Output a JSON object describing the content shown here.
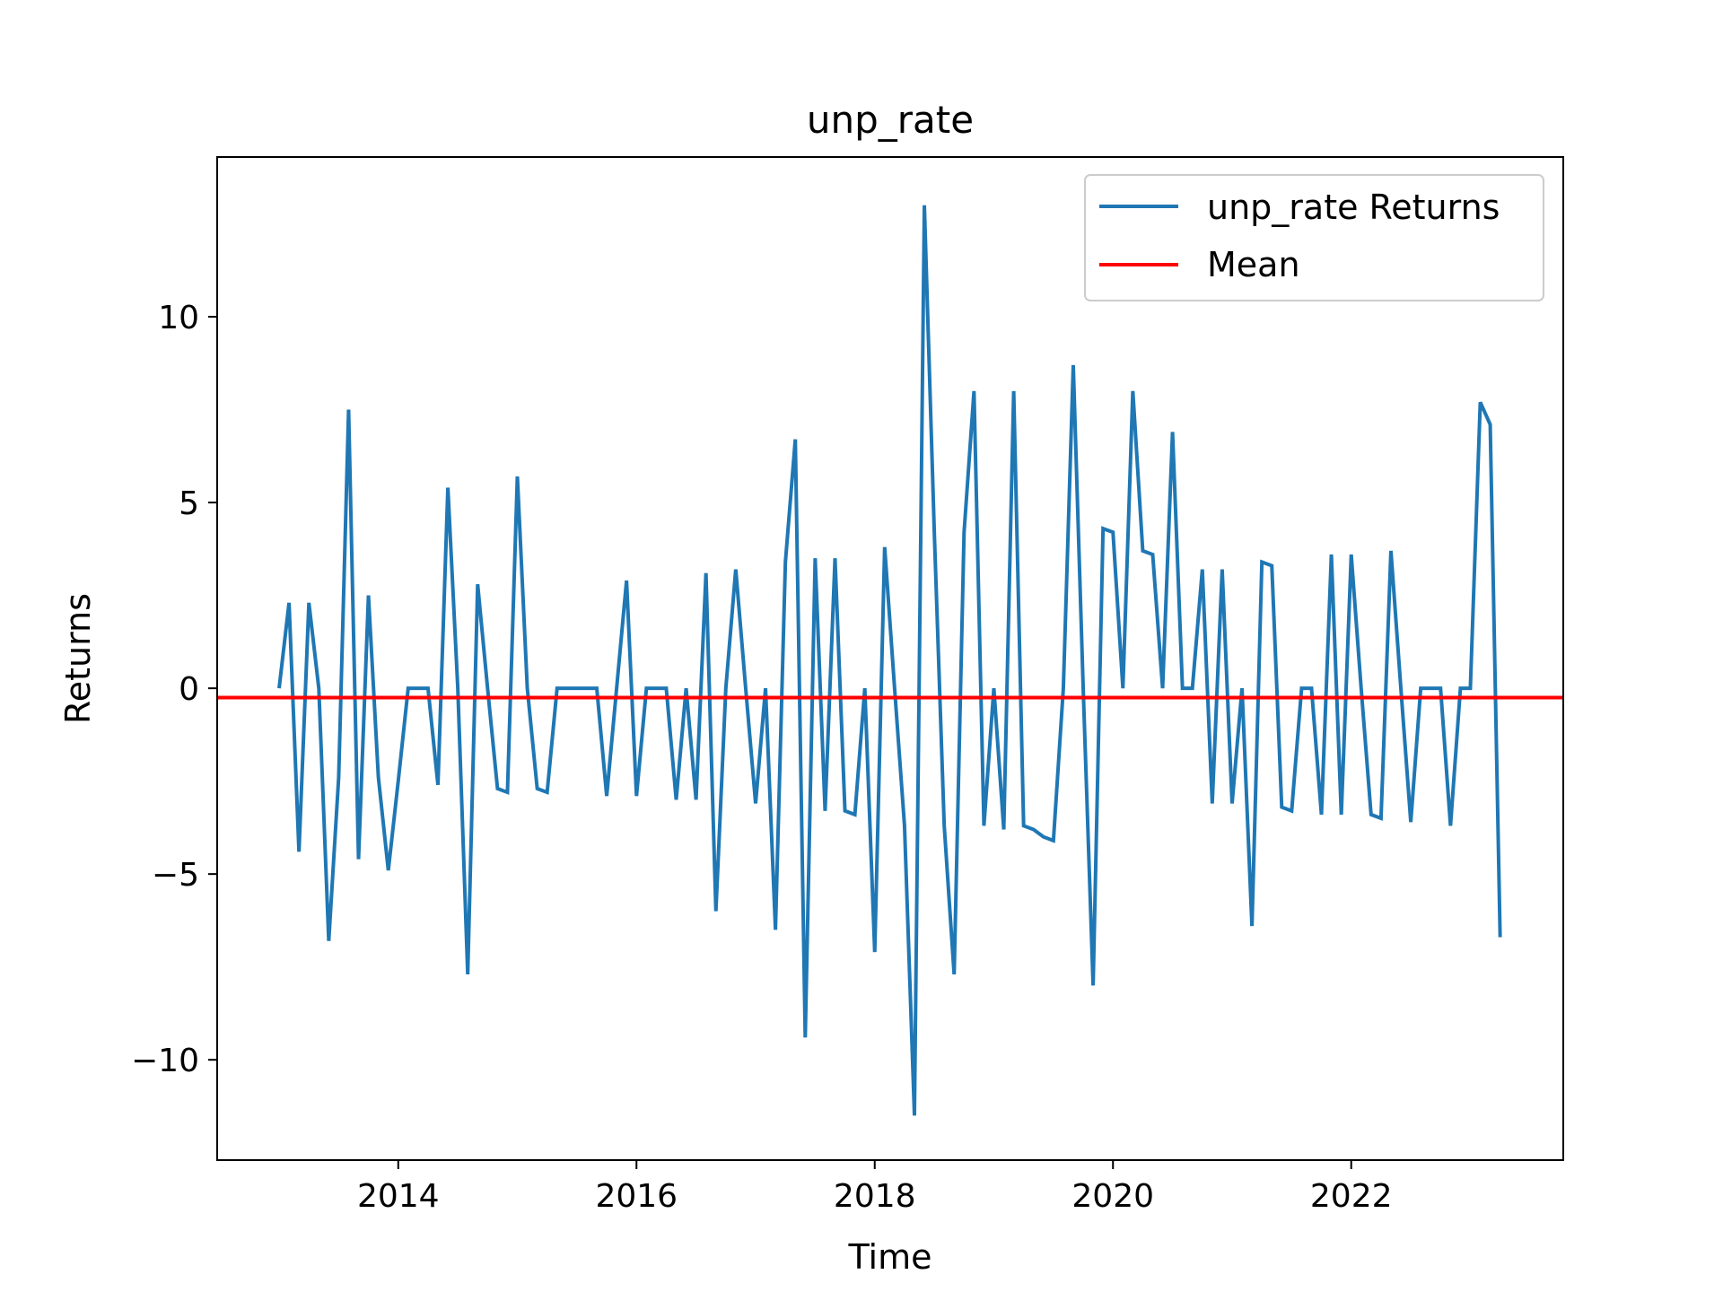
{
  "chart_data": {
    "type": "line",
    "title": "unp_rate",
    "xlabel": "Time",
    "ylabel": "Returns",
    "xlim": [
      2012.48,
      2023.78
    ],
    "ylim": [
      -12.7,
      14.3
    ],
    "grid": false,
    "legend_position": "top-right",
    "xticks": [
      {
        "value": 2014,
        "label": "2014"
      },
      {
        "value": 2016,
        "label": "2016"
      },
      {
        "value": 2018,
        "label": "2018"
      },
      {
        "value": 2020,
        "label": "2020"
      },
      {
        "value": 2022,
        "label": "2022"
      }
    ],
    "yticks": [
      {
        "value": -10,
        "label": "−10"
      },
      {
        "value": -5,
        "label": "−5"
      },
      {
        "value": 0,
        "label": "0"
      },
      {
        "value": 5,
        "label": "5"
      },
      {
        "value": 10,
        "label": "10"
      }
    ],
    "series": [
      {
        "name": "unp_rate Returns",
        "color": "#1f77b4",
        "start": "2013-01",
        "frequency": "monthly",
        "x": [
          "2013-01",
          "2013-02",
          "2013-03",
          "2013-04",
          "2013-05",
          "2013-06",
          "2013-07",
          "2013-08",
          "2013-09",
          "2013-10",
          "2013-11",
          "2013-12",
          "2014-01",
          "2014-02",
          "2014-03",
          "2014-04",
          "2014-05",
          "2014-06",
          "2014-07",
          "2014-08",
          "2014-09",
          "2014-10",
          "2014-11",
          "2014-12",
          "2015-01",
          "2015-02",
          "2015-03",
          "2015-04",
          "2015-05",
          "2015-06",
          "2015-07",
          "2015-08",
          "2015-09",
          "2015-10",
          "2015-11",
          "2015-12",
          "2016-01",
          "2016-02",
          "2016-03",
          "2016-04",
          "2016-05",
          "2016-06",
          "2016-07",
          "2016-08",
          "2016-09",
          "2016-10",
          "2016-11",
          "2016-12",
          "2017-01",
          "2017-02",
          "2017-03",
          "2017-04",
          "2017-05",
          "2017-06",
          "2017-07",
          "2017-08",
          "2017-09",
          "2017-10",
          "2017-11",
          "2017-12",
          "2018-01",
          "2018-02",
          "2018-03",
          "2018-04",
          "2018-05",
          "2018-06",
          "2018-07",
          "2018-08",
          "2018-09",
          "2018-10",
          "2018-11",
          "2018-12",
          "2019-01",
          "2019-02",
          "2019-03",
          "2019-04",
          "2019-05",
          "2019-06",
          "2019-07",
          "2019-08",
          "2019-09",
          "2019-10",
          "2019-11",
          "2019-12",
          "2020-01",
          "2020-02",
          "2020-03",
          "2020-04",
          "2020-05",
          "2020-06",
          "2020-07",
          "2020-08",
          "2020-09",
          "2020-10",
          "2020-11",
          "2020-12",
          "2021-01",
          "2021-02",
          "2021-03",
          "2021-04",
          "2021-05",
          "2021-06",
          "2021-07",
          "2021-08",
          "2021-09",
          "2021-10",
          "2021-11",
          "2021-12",
          "2022-01",
          "2022-02",
          "2022-03",
          "2022-04",
          "2022-05",
          "2022-06",
          "2022-07",
          "2022-08",
          "2022-09",
          "2022-10",
          "2022-11",
          "2022-12",
          "2023-01",
          "2023-02",
          "2023-03",
          "2023-04"
        ],
        "y": [
          0,
          2.3,
          -4.4,
          2.3,
          0,
          -6.8,
          -2.4,
          7.5,
          -4.6,
          2.5,
          -2.4,
          -4.9,
          -2.5,
          0,
          0,
          0,
          -2.6,
          5.4,
          0,
          -7.7,
          2.8,
          0,
          -2.7,
          -2.8,
          5.7,
          0,
          -2.7,
          -2.8,
          0,
          0,
          0,
          0,
          0,
          -2.9,
          0,
          2.9,
          -2.9,
          0,
          0,
          0,
          -3.0,
          0,
          -3.0,
          3.1,
          -6.0,
          0,
          3.2,
          0,
          -3.1,
          0,
          -6.5,
          3.4,
          6.7,
          -9.4,
          3.5,
          -3.3,
          3.5,
          -3.3,
          -3.4,
          0,
          -7.1,
          3.8,
          0,
          -3.7,
          -11.5,
          13.0,
          4.2,
          -3.7,
          -7.7,
          4.2,
          8.0,
          -3.7,
          0,
          -3.8,
          8.0,
          -3.7,
          -3.8,
          -4.0,
          -4.1,
          0,
          8.7,
          0,
          -8.0,
          4.3,
          4.2,
          0,
          8.0,
          3.7,
          3.6,
          0,
          6.9,
          0,
          0,
          3.2,
          -3.1,
          3.2,
          -3.1,
          0,
          -6.4,
          3.4,
          3.3,
          -3.2,
          -3.3,
          0,
          0,
          -3.4,
          3.6,
          -3.4,
          3.6,
          0,
          -3.4,
          -3.5,
          3.7,
          0,
          -3.6,
          0,
          0,
          0,
          -3.7,
          0,
          0,
          7.7,
          7.1,
          -6.7
        ]
      },
      {
        "name": "Mean",
        "color": "#ff0000",
        "value": -0.25
      }
    ]
  }
}
